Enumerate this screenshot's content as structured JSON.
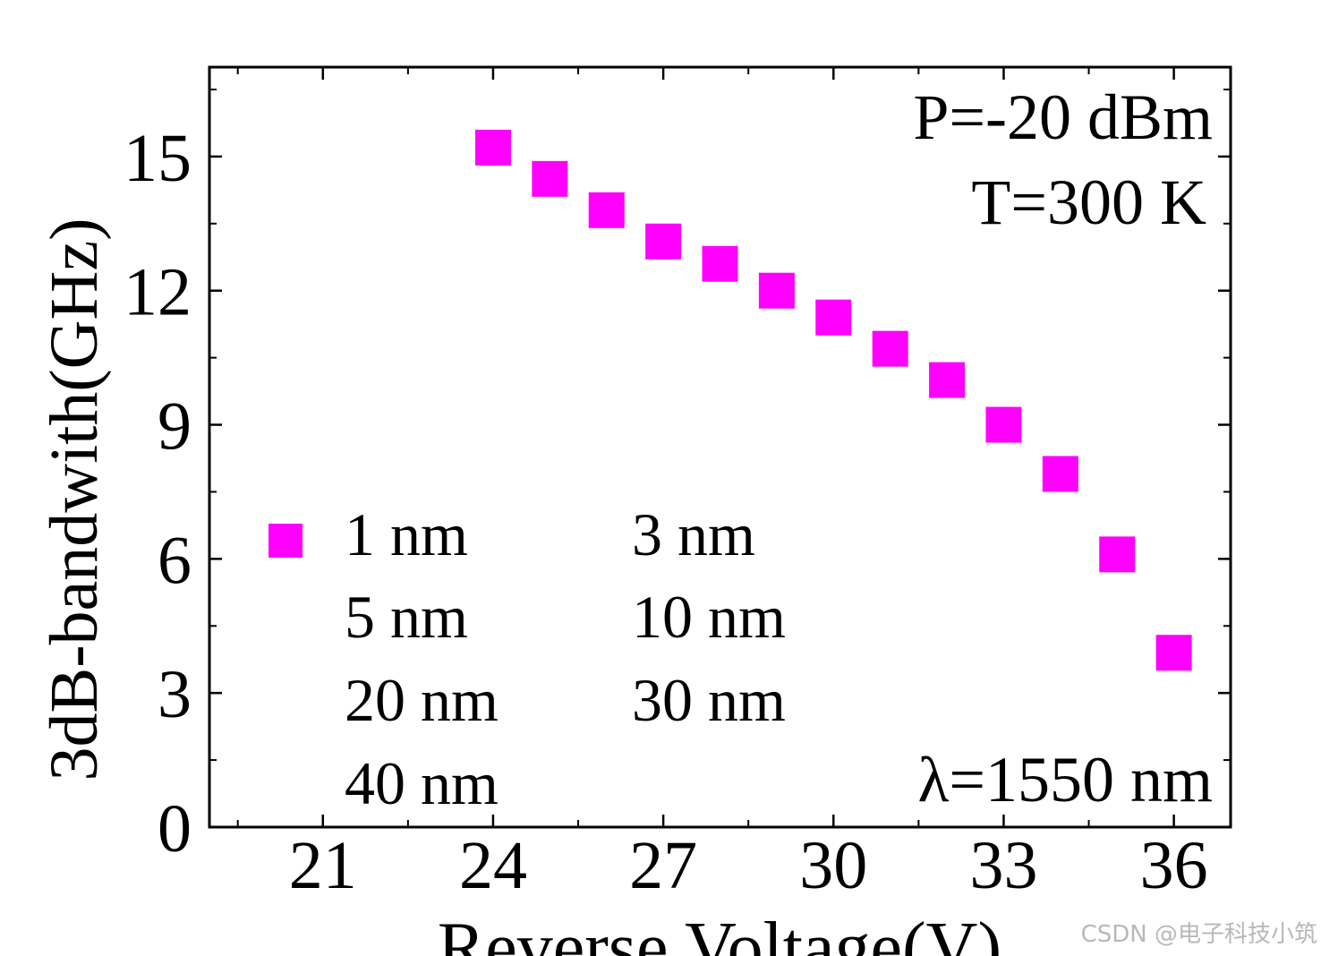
{
  "chart_data": {
    "type": "scatter",
    "title": "",
    "xlabel": "Reverse Voltage(V)",
    "ylabel": "3dB-bandwith(GHz)",
    "xlim": [
      19,
      37
    ],
    "ylim": [
      0,
      17
    ],
    "xticks": [
      21,
      24,
      27,
      30,
      33,
      36
    ],
    "yticks": [
      0,
      3,
      6,
      9,
      12,
      15
    ],
    "grid": false,
    "legend_position": "lower-left",
    "marker_color": "#ff00ff",
    "annotations": [
      "P=-20 dBm",
      "T=300 K",
      "λ=1550 nm"
    ],
    "legend": [
      "1 nm",
      "3 nm",
      "5 nm",
      "10 nm",
      "20 nm",
      "30 nm",
      "40 nm"
    ],
    "series": [
      {
        "name": "1 nm",
        "x": [
          24,
          25,
          26,
          27,
          28,
          29,
          30,
          31,
          32,
          33,
          34,
          35,
          36
        ],
        "y": [
          15.2,
          14.5,
          13.8,
          13.1,
          12.6,
          12.0,
          11.4,
          10.7,
          10.0,
          9.0,
          7.9,
          6.1,
          3.9
        ]
      }
    ]
  },
  "watermark": "CSDN @电子科技小筑"
}
